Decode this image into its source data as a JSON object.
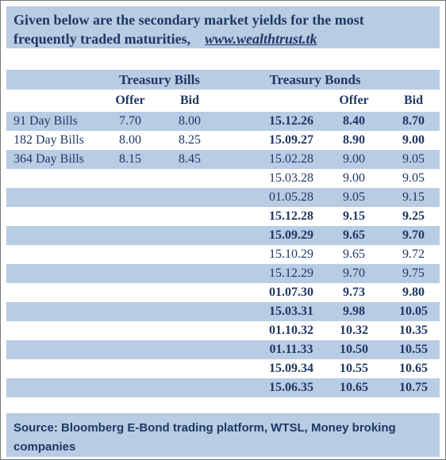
{
  "header": {
    "title": "Given below are the secondary market yields for the most frequently traded maturities,",
    "link": "www.wealthtrust.tk"
  },
  "bills": {
    "title": "Treasury Bills",
    "columns": [
      "Offer",
      "Bid"
    ],
    "rows": [
      [
        "91 Day Bills",
        "7.70",
        "8.00"
      ],
      [
        "182 Day Bills",
        "8.00",
        "8.25"
      ],
      [
        "364 Day Bills",
        "8.15",
        "8.45"
      ]
    ]
  },
  "bonds": {
    "title": "Treasury Bonds",
    "columns": [
      "Offer",
      "Bid"
    ],
    "rows": [
      {
        "maturity": "15.12.26",
        "offer": "8.40",
        "bid": "8.70",
        "bold": true
      },
      {
        "maturity": "15.09.27",
        "offer": "8.90",
        "bid": "9.00",
        "bold": true
      },
      {
        "maturity": "15.02.28",
        "offer": "9.00",
        "bid": "9.05",
        "bold": false
      },
      {
        "maturity": "15.03.28",
        "offer": "9.00",
        "bid": "9.05",
        "bold": false
      },
      {
        "maturity": "01.05.28",
        "offer": "9.05",
        "bid": "9.15",
        "bold": false
      },
      {
        "maturity": "15.12.28",
        "offer": "9.15",
        "bid": "9.25",
        "bold": true
      },
      {
        "maturity": "15.09.29",
        "offer": "9.65",
        "bid": "9.70",
        "bold": true
      },
      {
        "maturity": "15.10.29",
        "offer": "9.65",
        "bid": "9.72",
        "bold": false
      },
      {
        "maturity": "15.12.29",
        "offer": "9.70",
        "bid": "9.75",
        "bold": false
      },
      {
        "maturity": "01.07.30",
        "offer": "9.73",
        "bid": "9.80",
        "bold": true
      },
      {
        "maturity": "15.03.31",
        "offer": "9.98",
        "bid": "10.05",
        "bold": true
      },
      {
        "maturity": "01.10.32",
        "offer": "10.32",
        "bid": "10.35",
        "bold": true
      },
      {
        "maturity": "01.11.33",
        "offer": "10.50",
        "bid": "10.55",
        "bold": true
      },
      {
        "maturity": "15.09.34",
        "offer": "10.55",
        "bid": "10.65",
        "bold": true
      },
      {
        "maturity": "15.06.35",
        "offer": "10.65",
        "bid": "10.75",
        "bold": true
      }
    ]
  },
  "footer": {
    "source": "Source: Bloomberg E-Bond trading platform, WTSL, Money broking companies"
  }
}
